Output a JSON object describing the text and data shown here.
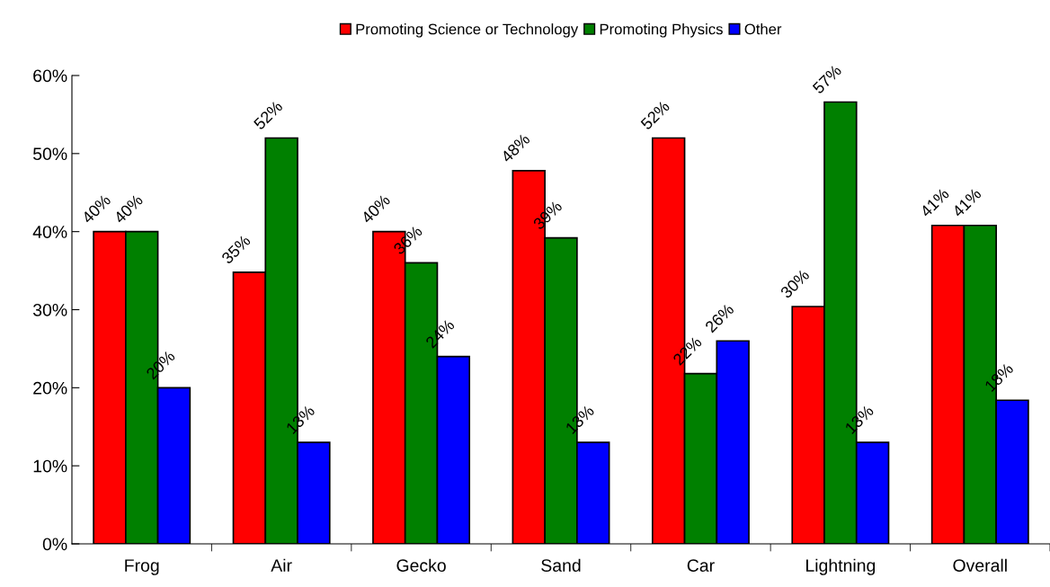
{
  "chart_data": {
    "type": "bar",
    "categories": [
      "Frog",
      "Air",
      "Gecko",
      "Sand",
      "Car",
      "Lightning",
      "Overall"
    ],
    "series": [
      {
        "name": "Promoting Science or Technology",
        "color": "#ff0000",
        "values": [
          40,
          34.8,
          40,
          47.8,
          52,
          30.4,
          40.8
        ],
        "value_labels": [
          "40%",
          "35%",
          "40%",
          "48%",
          "52%",
          "30%",
          "41%"
        ]
      },
      {
        "name": "Promoting Physics",
        "color": "#008000",
        "values": [
          40,
          52,
          36,
          39.2,
          21.8,
          56.6,
          40.8
        ],
        "value_labels": [
          "40%",
          "52%",
          "36%",
          "39%",
          "22%",
          "57%",
          "41%"
        ]
      },
      {
        "name": "Other",
        "color": "#0000ff",
        "values": [
          20,
          13,
          24,
          13,
          26,
          13,
          18.4
        ],
        "value_labels": [
          "20%",
          "13%",
          "24%",
          "13%",
          "26%",
          "13%",
          "18%"
        ]
      }
    ],
    "ylim": [
      0,
      60
    ],
    "yticks": [
      {
        "value": 0,
        "label": "0%"
      },
      {
        "value": 10,
        "label": "10%"
      },
      {
        "value": 20,
        "label": "20%"
      },
      {
        "value": 30,
        "label": "30%"
      },
      {
        "value": 40,
        "label": "40%"
      },
      {
        "value": 50,
        "label": "50%"
      },
      {
        "value": 60,
        "label": "60%"
      }
    ],
    "grid": false,
    "legend": "top"
  }
}
